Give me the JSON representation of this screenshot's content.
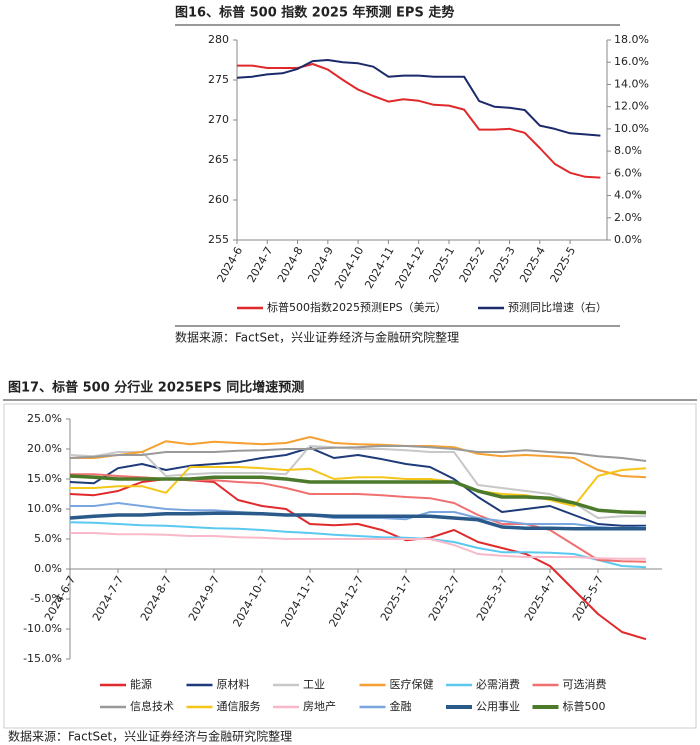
{
  "chart_data": [
    {
      "type": "line",
      "title": "图16、标普 500 指数 2025 年预测 EPS 走势",
      "source": "数据来源：FactSet，兴业证券经济与金融研究院整理",
      "categories": [
        "2024-6",
        null,
        "2024-7",
        null,
        "2024-8",
        null,
        "2024-9",
        null,
        "2024-10",
        null,
        "2024-11",
        null,
        "2024-12",
        null,
        "2025-1",
        null,
        "2025-2",
        null,
        "2025-3",
        null,
        "2025-4",
        null,
        "2025-5",
        null,
        null
      ],
      "ylim": [
        255,
        280
      ],
      "yticks": [
        255,
        260,
        265,
        270,
        275,
        280
      ],
      "y2lim": [
        0,
        18
      ],
      "y2ticks": [
        {
          "value": 0,
          "label": "0.0%"
        },
        {
          "value": 2,
          "label": "2.0%"
        },
        {
          "value": 4,
          "label": "4.0%"
        },
        {
          "value": 6,
          "label": "6.0%"
        },
        {
          "value": 8,
          "label": "8.0%"
        },
        {
          "value": 10,
          "label": "10.0%"
        },
        {
          "value": 12,
          "label": "12.0%"
        },
        {
          "value": 14,
          "label": "14.0%"
        },
        {
          "value": 16,
          "label": "16.0%"
        },
        {
          "value": 18,
          "label": "18.0%"
        }
      ],
      "series": [
        {
          "name": "标普500指数2025预测EPS（美元）",
          "color": "#e0292b",
          "linewidth": 2,
          "values": [
            276.8,
            276.8,
            276.5,
            276.5,
            276.5,
            277.0,
            276.3,
            275.0,
            273.8,
            273.0,
            272.3,
            272.6,
            272.4,
            271.9,
            271.8,
            271.3,
            268.8,
            268.8,
            268.9,
            268.4,
            266.5,
            264.5,
            263.4,
            262.9,
            262.8
          ]
        },
        {
          "name": "预测同比增速（右）",
          "color": "#1b2a6b",
          "linewidth": 2,
          "axis": "y2",
          "values": [
            14.6,
            14.7,
            14.9,
            15.0,
            15.4,
            16.1,
            16.2,
            16.0,
            15.9,
            15.6,
            14.7,
            14.8,
            14.8,
            14.7,
            14.7,
            14.7,
            12.5,
            12.0,
            11.9,
            11.7,
            10.3,
            10.0,
            9.6,
            9.5,
            9.4
          ]
        }
      ]
    },
    {
      "type": "line",
      "title": "图17、标普 500 分行业 2025EPS 同比增速预测",
      "source": "数据来源：FactSet，兴业证券经济与金融研究院整理",
      "categories": [
        "2024-6-7",
        null,
        "2024-7-7",
        null,
        "2024-8-7",
        null,
        "2024-9-7",
        null,
        "2024-10-7",
        null,
        "2024-11-7",
        null,
        "2024-12-7",
        null,
        "2025-1-7",
        null,
        "2025-2-7",
        null,
        "2025-3-7",
        null,
        "2025-4-7",
        null,
        "2025-5-7",
        null,
        null
      ],
      "ylim": [
        -15,
        25
      ],
      "yticks": [
        {
          "value": -15,
          "label": "-15.0%"
        },
        {
          "value": -10,
          "label": "-10.0%"
        },
        {
          "value": -5,
          "label": "-5.0%"
        },
        {
          "value": 0,
          "label": "0.0%"
        },
        {
          "value": 5,
          "label": "5.0%"
        },
        {
          "value": 10,
          "label": "10.0%"
        },
        {
          "value": 15,
          "label": "15.0%"
        },
        {
          "value": 20,
          "label": "20.0%"
        },
        {
          "value": 25,
          "label": "25.0%"
        }
      ],
      "series": [
        {
          "name": "能源",
          "color": "#e0292b",
          "linewidth": 2,
          "values": [
            12.5,
            12.3,
            13.0,
            14.5,
            15.0,
            14.8,
            14.5,
            11.5,
            10.5,
            10.0,
            7.5,
            7.3,
            7.5,
            6.5,
            4.8,
            5.2,
            6.5,
            4.5,
            3.5,
            2.5,
            0.5,
            -3.5,
            -7.5,
            -10.5,
            -11.7
          ]
        },
        {
          "name": "原材料",
          "color": "#1f3a7a",
          "linewidth": 2,
          "values": [
            14.5,
            14.3,
            16.8,
            17.5,
            16.5,
            17.2,
            17.5,
            17.8,
            18.5,
            19.0,
            20.2,
            18.5,
            19.0,
            18.3,
            17.5,
            17.0,
            15.0,
            12.0,
            9.5,
            10.0,
            10.5,
            9.0,
            7.5,
            7.2,
            7.2
          ]
        },
        {
          "name": "工业",
          "color": "#c8c8c8",
          "linewidth": 2,
          "values": [
            19.0,
            18.8,
            19.5,
            19.5,
            15.5,
            15.8,
            16.0,
            16.0,
            16.0,
            15.8,
            20.5,
            20.3,
            20.0,
            20.0,
            19.8,
            19.5,
            19.5,
            14.0,
            13.5,
            13.0,
            12.5,
            11.0,
            8.5,
            8.8,
            8.8
          ]
        },
        {
          "name": "医疗保健",
          "color": "#f5a030",
          "linewidth": 2,
          "values": [
            18.5,
            18.5,
            19.0,
            19.5,
            21.3,
            20.8,
            21.2,
            21.0,
            20.8,
            21.0,
            22.0,
            21.0,
            20.8,
            20.7,
            20.5,
            20.5,
            20.3,
            19.2,
            18.8,
            19.0,
            18.8,
            18.5,
            16.5,
            15.5,
            15.3
          ]
        },
        {
          "name": "必需消费",
          "color": "#5bc8f0",
          "linewidth": 2,
          "values": [
            7.8,
            7.7,
            7.5,
            7.3,
            7.2,
            7.0,
            6.8,
            6.7,
            6.5,
            6.2,
            6.0,
            5.7,
            5.5,
            5.3,
            5.2,
            5.0,
            4.5,
            3.5,
            2.8,
            2.8,
            2.7,
            2.5,
            1.5,
            0.5,
            0.3
          ]
        },
        {
          "name": "可选消费",
          "color": "#f07070",
          "linewidth": 2,
          "values": [
            15.8,
            15.8,
            15.5,
            15.3,
            15.0,
            14.8,
            14.8,
            14.5,
            14.3,
            13.5,
            12.5,
            12.5,
            12.5,
            12.3,
            12.0,
            11.8,
            11.0,
            9.0,
            7.5,
            7.5,
            6.5,
            4.0,
            1.5,
            1.3,
            1.2
          ]
        },
        {
          "name": "信息技术",
          "color": "#999999",
          "linewidth": 2,
          "values": [
            18.5,
            18.7,
            19.0,
            19.0,
            19.5,
            19.5,
            19.5,
            19.7,
            19.8,
            20.0,
            20.0,
            20.2,
            20.3,
            20.5,
            20.5,
            20.3,
            20.0,
            19.5,
            19.5,
            19.8,
            19.5,
            19.3,
            18.8,
            18.5,
            18.0
          ]
        },
        {
          "name": "通信服务",
          "color": "#f5c518",
          "linewidth": 2,
          "values": [
            13.5,
            13.5,
            13.8,
            13.8,
            12.7,
            17.0,
            17.0,
            17.0,
            16.8,
            16.5,
            16.7,
            15.0,
            15.3,
            15.3,
            15.0,
            15.0,
            14.5,
            13.0,
            12.5,
            12.3,
            11.5,
            10.5,
            15.5,
            16.5,
            16.8
          ]
        },
        {
          "name": "房地产",
          "color": "#f9b8c8",
          "linewidth": 2,
          "values": [
            6.0,
            6.0,
            5.8,
            5.8,
            5.7,
            5.5,
            5.5,
            5.3,
            5.2,
            5.0,
            5.0,
            5.0,
            5.0,
            5.0,
            5.0,
            5.0,
            4.0,
            2.5,
            2.2,
            2.0,
            2.0,
            2.0,
            1.8,
            1.7,
            1.7
          ]
        },
        {
          "name": "金融",
          "color": "#7aa6e0",
          "linewidth": 2,
          "values": [
            10.5,
            10.5,
            11.0,
            10.5,
            10.0,
            9.8,
            9.8,
            9.5,
            9.3,
            9.0,
            9.0,
            8.5,
            8.5,
            8.5,
            8.3,
            9.5,
            9.5,
            8.5,
            8.0,
            7.5,
            7.5,
            7.5,
            7.0,
            6.8,
            7.0
          ]
        },
        {
          "name": "公用事业",
          "color": "#2a5a8a",
          "linewidth": 3.5,
          "values": [
            8.5,
            8.8,
            9.0,
            9.0,
            9.2,
            9.2,
            9.3,
            9.3,
            9.2,
            9.0,
            9.0,
            8.8,
            8.8,
            8.8,
            8.8,
            8.8,
            8.5,
            8.2,
            7.0,
            6.8,
            6.8,
            6.7,
            6.7,
            6.7,
            6.7
          ]
        },
        {
          "name": "标普500",
          "color": "#4a7a2a",
          "linewidth": 3.5,
          "values": [
            15.5,
            15.3,
            15.0,
            15.0,
            15.0,
            15.0,
            15.3,
            15.3,
            15.3,
            15.0,
            14.5,
            14.5,
            14.5,
            14.5,
            14.5,
            14.5,
            14.5,
            13.0,
            12.0,
            12.0,
            11.8,
            11.0,
            9.8,
            9.5,
            9.4
          ]
        }
      ]
    }
  ]
}
